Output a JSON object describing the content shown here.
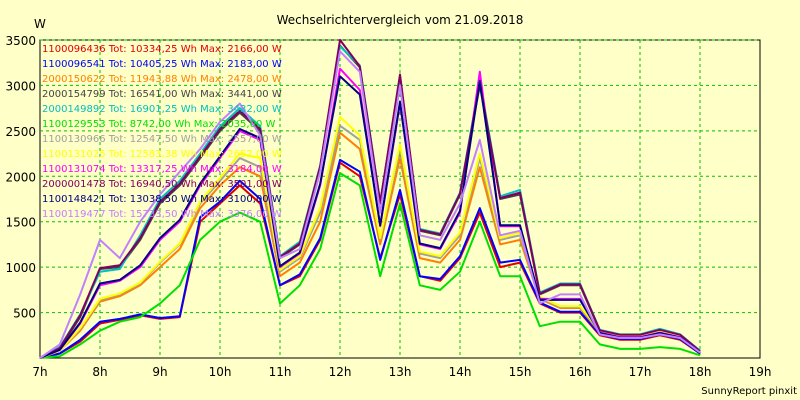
{
  "chart_data": {
    "type": "line",
    "title": "Wechselrichtervergleich vom 21.09.2018",
    "ylabel": "W",
    "footer": "SunnyReport pinxit",
    "ylim": [
      0,
      3500
    ],
    "xlim": [
      7,
      19
    ],
    "grid": true,
    "legend_position": "top-left",
    "x_ticks": [
      {
        "v": 7,
        "label": "7h"
      },
      {
        "v": 8,
        "label": "8h"
      },
      {
        "v": 9,
        "label": "9h"
      },
      {
        "v": 10,
        "label": "10h"
      },
      {
        "v": 11,
        "label": "11h"
      },
      {
        "v": 12,
        "label": "12h"
      },
      {
        "v": 13,
        "label": "13h"
      },
      {
        "v": 14,
        "label": "14h"
      },
      {
        "v": 15,
        "label": "15h"
      },
      {
        "v": 16,
        "label": "16h"
      },
      {
        "v": 17,
        "label": "17h"
      },
      {
        "v": 18,
        "label": "18h"
      },
      {
        "v": 19,
        "label": "19h"
      }
    ],
    "y_ticks": [
      {
        "v": 500,
        "label": "500"
      },
      {
        "v": 1000,
        "label": "1000"
      },
      {
        "v": 1500,
        "label": "1500"
      },
      {
        "v": 2000,
        "label": "2000"
      },
      {
        "v": 2500,
        "label": "2500"
      },
      {
        "v": 3000,
        "label": "3000"
      },
      {
        "v": 3500,
        "label": "3500"
      }
    ],
    "x": [
      7.0,
      7.33,
      7.67,
      8.0,
      8.33,
      8.67,
      9.0,
      9.33,
      9.67,
      10.0,
      10.33,
      10.67,
      11.0,
      11.33,
      11.67,
      12.0,
      12.33,
      12.67,
      13.0,
      13.33,
      13.67,
      14.0,
      14.33,
      14.67,
      15.0,
      15.33,
      15.67,
      16.0,
      16.33,
      16.67,
      17.0,
      17.33,
      17.67,
      18.0
    ],
    "series": [
      {
        "name": "1100096436",
        "legend": "1100096436 Tot: 10334,25 Wh Max: 2166,00 W",
        "color": "#e00000",
        "values": [
          0,
          50,
          180,
          380,
          420,
          470,
          430,
          450,
          1500,
          1700,
          1900,
          1700,
          800,
          900,
          1300,
          2150,
          2000,
          1100,
          1800,
          900,
          850,
          1100,
          1600,
          1000,
          1050,
          600,
          500,
          500,
          250,
          200,
          200,
          250,
          200,
          50
        ]
      },
      {
        "name": "1100096541",
        "legend": "1100096541 Tot: 10405,25 Wh Max: 2183,00 W",
        "color": "#0000ff",
        "values": [
          0,
          50,
          200,
          400,
          430,
          480,
          440,
          460,
          1550,
          1720,
          1950,
          1750,
          800,
          920,
          1320,
          2180,
          2050,
          1080,
          1850,
          900,
          870,
          1120,
          1650,
          1050,
          1080,
          610,
          510,
          510,
          260,
          210,
          210,
          260,
          210,
          50
        ]
      },
      {
        "name": "2000150622",
        "legend": "2000150622 Tot: 11943,88 Wh Max: 2478,00 W",
        "color": "#ff8000",
        "values": [
          0,
          80,
          300,
          620,
          680,
          800,
          1000,
          1200,
          1650,
          1900,
          2100,
          2000,
          900,
          1050,
          1500,
          2480,
          2300,
          1250,
          2200,
          1100,
          1050,
          1300,
          2100,
          1250,
          1300,
          650,
          550,
          550,
          280,
          220,
          220,
          280,
          220,
          60
        ]
      },
      {
        "name": "2000154799",
        "legend": "2000154799 Tot: 16541,00 Wh Max: 3441,00 W",
        "color": "#444444",
        "values": [
          0,
          100,
          450,
          980,
          1000,
          1300,
          1700,
          1900,
          2200,
          2500,
          2700,
          2500,
          1100,
          1250,
          2100,
          3440,
          3200,
          1700,
          3100,
          1400,
          1350,
          1800,
          3000,
          1750,
          1800,
          700,
          800,
          800,
          300,
          250,
          250,
          300,
          250,
          70
        ]
      },
      {
        "name": "2000149892",
        "legend": "2000149892 Tot: 16901,25 Wh Max: 3432,00 W",
        "color": "#00c0c0",
        "values": [
          0,
          120,
          480,
          950,
          980,
          1350,
          1750,
          1950,
          2250,
          2550,
          2750,
          2550,
          1120,
          1280,
          2120,
          3430,
          3220,
          1720,
          3080,
          1420,
          1370,
          1820,
          3050,
          1780,
          1850,
          720,
          820,
          820,
          310,
          260,
          260,
          320,
          260,
          80
        ]
      },
      {
        "name": "1100129553",
        "legend": "1100129553 Tot: 8742,00 Wh Max: 2035,00 W",
        "color": "#00e000",
        "values": [
          0,
          20,
          150,
          300,
          400,
          450,
          600,
          800,
          1300,
          1500,
          1600,
          1500,
          600,
          800,
          1200,
          2035,
          1900,
          900,
          1700,
          800,
          750,
          950,
          1500,
          900,
          900,
          350,
          400,
          400,
          150,
          100,
          100,
          120,
          100,
          30
        ]
      },
      {
        "name": "1100130966",
        "legend": "1100130966 Tot: 12547,50 Wh Max: 2557,00 W",
        "color": "#a0a0a0",
        "values": [
          0,
          80,
          320,
          640,
          700,
          820,
          1050,
          1250,
          1700,
          1950,
          2200,
          2100,
          950,
          1100,
          1600,
          2557,
          2400,
          1300,
          2300,
          1150,
          1100,
          1350,
          2200,
          1300,
          1350,
          660,
          560,
          560,
          290,
          230,
          230,
          290,
          230,
          60
        ]
      },
      {
        "name": "1100131025",
        "legend": "1100131025 Tot: 12583,38 Wh Max: 2652,00 W",
        "color": "#ffff00",
        "values": [
          0,
          80,
          330,
          650,
          710,
          830,
          1060,
          1260,
          1720,
          1980,
          2250,
          2200,
          970,
          1120,
          1650,
          2652,
          2450,
          1320,
          2350,
          1170,
          1120,
          1380,
          2250,
          1320,
          1380,
          670,
          570,
          570,
          300,
          240,
          240,
          300,
          240,
          60
        ]
      },
      {
        "name": "1100131074",
        "legend": "1100131074 Tot: 13317,25 Wh Max: 3184,00 W",
        "color": "#ff00ff",
        "values": [
          0,
          90,
          380,
          800,
          850,
          1000,
          1300,
          1500,
          1900,
          2200,
          2500,
          2400,
          1000,
          1150,
          1900,
          3184,
          2950,
          1450,
          2800,
          1250,
          1200,
          1600,
          3150,
          1450,
          1450,
          650,
          650,
          650,
          280,
          230,
          230,
          280,
          230,
          60
        ]
      },
      {
        "name": "2000001478",
        "legend": "2000001478 Tot: 16940,50 Wh Max: 3501,00 W",
        "color": "#800060",
        "values": [
          0,
          110,
          470,
          990,
          1020,
          1320,
          1720,
          1920,
          2220,
          2520,
          2720,
          2520,
          1110,
          1260,
          2110,
          3501,
          3210,
          1710,
          3120,
          1410,
          1360,
          1810,
          3020,
          1760,
          1820,
          710,
          810,
          810,
          305,
          255,
          255,
          310,
          255,
          75
        ]
      },
      {
        "name": "1100148421",
        "legend": "1100148421 Tot: 13038,50 Wh Max: 3100,00 W",
        "color": "#000080",
        "values": [
          0,
          90,
          390,
          820,
          860,
          1020,
          1320,
          1520,
          1920,
          2220,
          2520,
          2420,
          1010,
          1160,
          1920,
          3100,
          2900,
          1460,
          2820,
          1260,
          1210,
          1620,
          3050,
          1460,
          1460,
          640,
          640,
          640,
          275,
          225,
          225,
          275,
          225,
          60
        ]
      },
      {
        "name": "1100119477",
        "legend": "1100119477 Tot: 15733,50 Wh Max: 3376,00 W",
        "color": "#c080ff",
        "values": [
          0,
          150,
          700,
          1300,
          1100,
          1500,
          1800,
          2050,
          2300,
          2600,
          2800,
          2450,
          1100,
          1200,
          2050,
          3376,
          3150,
          1600,
          3000,
          1350,
          1300,
          1700,
          2400,
          1350,
          1400,
          600,
          700,
          700,
          260,
          220,
          220,
          260,
          220,
          60
        ]
      }
    ]
  }
}
